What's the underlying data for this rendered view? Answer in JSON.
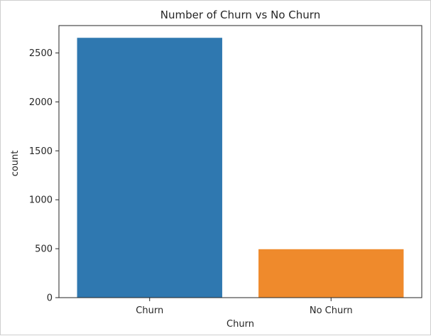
{
  "chart_data": {
    "type": "bar",
    "title": "Number of Churn vs No Churn",
    "xlabel": "Churn",
    "ylabel": "count",
    "categories": [
      "Churn",
      "No Churn"
    ],
    "values": [
      2655,
      495
    ],
    "colors": [
      "#2f78b0",
      "#ef8a2c"
    ],
    "ylim": [
      0,
      2780
    ],
    "yticks": [
      0,
      500,
      1000,
      1500,
      2000,
      2500
    ],
    "ytick_labels": [
      "0",
      "500",
      "1000",
      "1500",
      "2000",
      "2500"
    ],
    "grid": false,
    "legend": "none"
  }
}
